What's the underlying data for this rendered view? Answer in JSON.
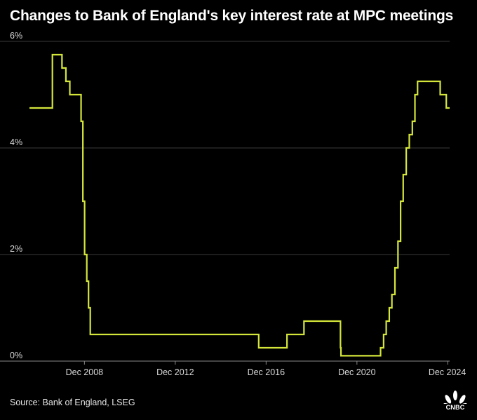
{
  "title": "Changes to Bank of England's key interest rate at MPC meetings",
  "source": "Source: Bank of England, LSEG",
  "logo_text": "CNBC",
  "colors": {
    "background": "#000000",
    "line": "#d4e63a",
    "grid": "#3a3a3a",
    "text": "#ffffff",
    "tick_text": "#d9d9d9"
  },
  "chart_data": {
    "type": "line",
    "step": "after",
    "title": "Changes to Bank of England's key interest rate at MPC meetings",
    "xlabel": "",
    "ylabel": "",
    "xlim": [
      "2006-07-01",
      "2024-12-31"
    ],
    "ylim": [
      0,
      6
    ],
    "y_ticks": [
      0,
      2,
      4,
      6
    ],
    "y_tick_labels": [
      "0%",
      "2%",
      "4%",
      "6%"
    ],
    "x_ticks": [
      "2008-12-01",
      "2012-12-01",
      "2016-12-01",
      "2020-12-01",
      "2024-12-01"
    ],
    "x_tick_labels": [
      "Dec 2008",
      "Dec 2012",
      "Dec 2016",
      "Dec 2020",
      "Dec 2024"
    ],
    "grid": "horizontal",
    "series": [
      {
        "x": [
          "2006-07-01",
          "2007-07-05",
          "2007-12-06",
          "2008-02-07",
          "2008-04-10",
          "2008-10-08",
          "2008-11-06",
          "2008-12-04",
          "2009-01-08",
          "2009-02-05",
          "2009-03-05",
          "2016-08-04",
          "2017-11-02",
          "2018-08-02",
          "2020-03-11",
          "2020-03-19",
          "2021-12-16",
          "2022-02-03",
          "2022-03-17",
          "2022-05-05",
          "2022-06-16",
          "2022-08-04",
          "2022-09-22",
          "2022-11-03",
          "2022-12-15",
          "2023-02-02",
          "2023-03-23",
          "2023-05-11",
          "2023-06-22",
          "2023-08-03",
          "2024-08-01",
          "2024-11-07",
          "2024-12-31"
        ],
        "values": [
          4.75,
          5.75,
          5.5,
          5.25,
          5.0,
          4.5,
          3.0,
          2.0,
          1.5,
          1.0,
          0.5,
          0.25,
          0.5,
          0.75,
          0.25,
          0.1,
          0.25,
          0.5,
          0.75,
          1.0,
          1.25,
          1.75,
          2.25,
          3.0,
          3.5,
          4.0,
          4.25,
          4.5,
          5.0,
          5.25,
          5.0,
          4.75,
          4.75
        ]
      }
    ]
  }
}
